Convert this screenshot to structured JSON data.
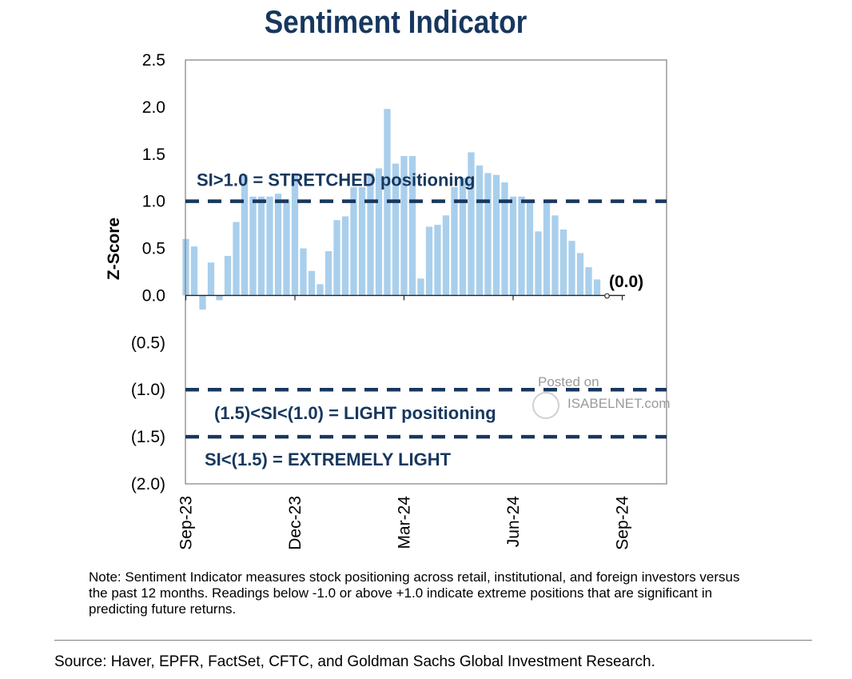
{
  "title": "Sentiment Indicator",
  "note": "Note: Sentiment Indicator measures stock positioning across retail, institutional, and foreign investors versus the past 12 months. Readings below -1.0 or above +1.0 indicate extreme positions that are significant in predicting future returns.",
  "source": "Source: Haver, EPFR, FactSet, CFTC, and Goldman Sachs Global Investment Research.",
  "watermark": {
    "line1": "Posted on",
    "line2": "ISABELNET.com"
  },
  "colors": {
    "title": "#17375e",
    "bars": "#a9cfec",
    "reference_lines": "#17375e"
  },
  "chart_data": {
    "type": "bar",
    "ylabel": "Z-Score",
    "ylim": [
      -2.0,
      2.5
    ],
    "yticks": [
      2.5,
      2.0,
      1.5,
      1.0,
      0.5,
      0.0,
      -0.5,
      -1.0,
      -1.5,
      -2.0
    ],
    "ytick_labels": [
      "2.5",
      "2.0",
      "1.5",
      "1.0",
      "0.5",
      "0.0",
      "(0.5)",
      "(1.0)",
      "(1.5)",
      "(2.0)"
    ],
    "xtick_labels": [
      "Sep-23",
      "Dec-23",
      "Mar-24",
      "Jun-24",
      "Sep-24"
    ],
    "xtick_weeks": [
      0,
      13,
      26,
      39,
      52
    ],
    "values": [
      0.6,
      0.52,
      -0.15,
      0.35,
      -0.05,
      0.42,
      0.78,
      1.28,
      1.05,
      1.05,
      1.05,
      1.08,
      1.02,
      1.28,
      0.5,
      0.26,
      0.12,
      0.47,
      0.8,
      0.84,
      1.15,
      1.15,
      1.3,
      1.35,
      1.98,
      1.4,
      1.48,
      1.48,
      0.18,
      0.73,
      0.75,
      0.85,
      1.15,
      1.25,
      1.52,
      1.38,
      1.3,
      1.28,
      1.2,
      1.05,
      1.05,
      1.02,
      0.68,
      1.0,
      0.85,
      0.7,
      0.58,
      0.45,
      0.3,
      0.17,
      0.0
    ],
    "latest_label": "(0.0)",
    "reference_lines": [
      {
        "y": 1.0,
        "label": "SI>1.0 = STRETCHED positioning"
      },
      {
        "y": -1.0,
        "label": "(1.5)<SI<(1.0) = LIGHT positioning"
      },
      {
        "y": -1.5,
        "label": "SI<(1.5) = EXTREMELY LIGHT"
      }
    ],
    "grid": false,
    "legend": "none"
  }
}
